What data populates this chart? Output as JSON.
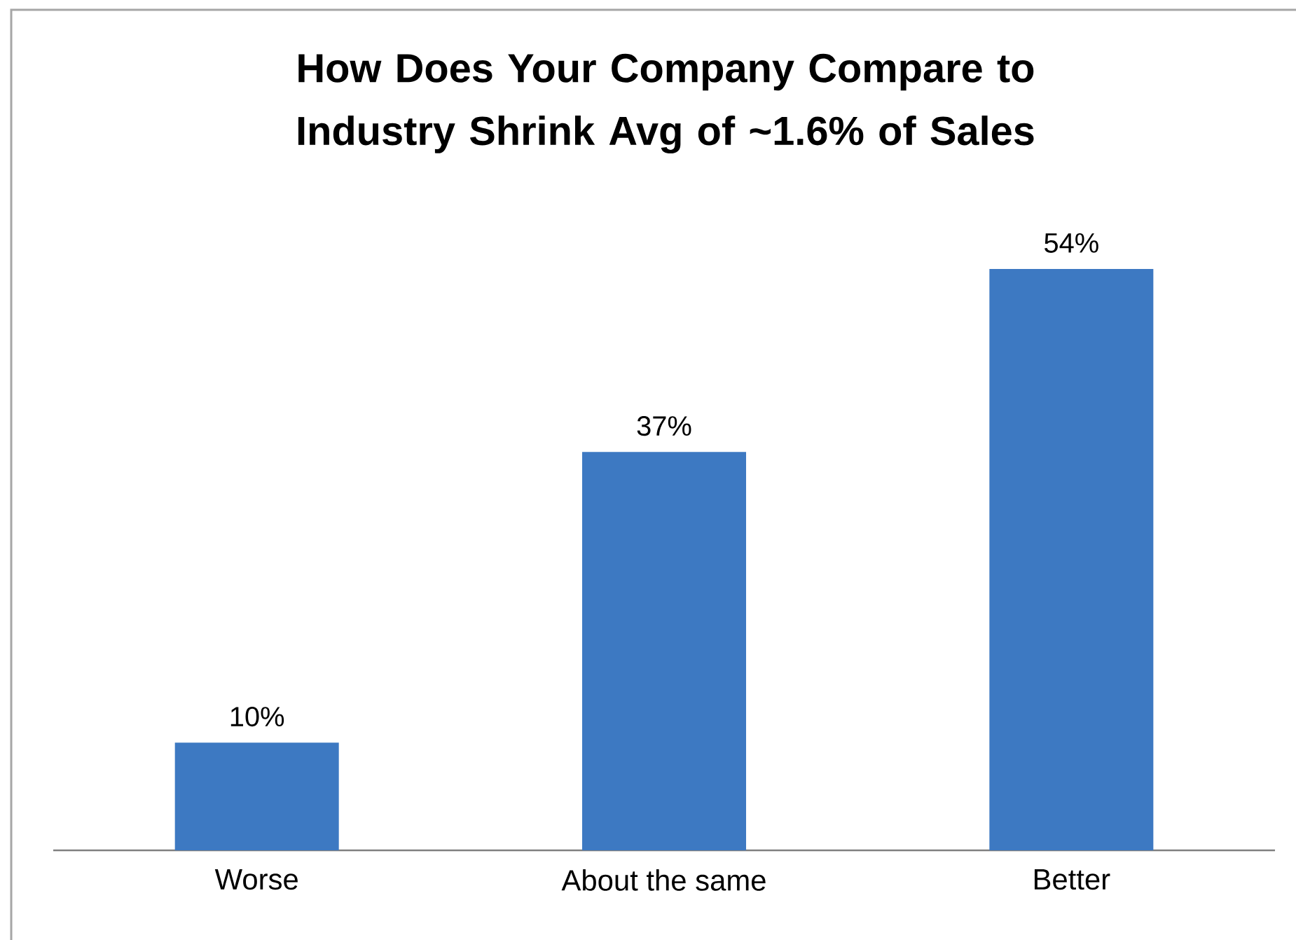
{
  "chart_data": {
    "type": "bar",
    "title": "How Does Your Company Compare to Industry Shrink Avg of ~1.6% of Sales",
    "categories": [
      "Worse",
      "About the same",
      "Better"
    ],
    "values": [
      10,
      37,
      54
    ],
    "value_labels": [
      "10%",
      "37%",
      "54%"
    ],
    "color": "#3d79c2"
  }
}
